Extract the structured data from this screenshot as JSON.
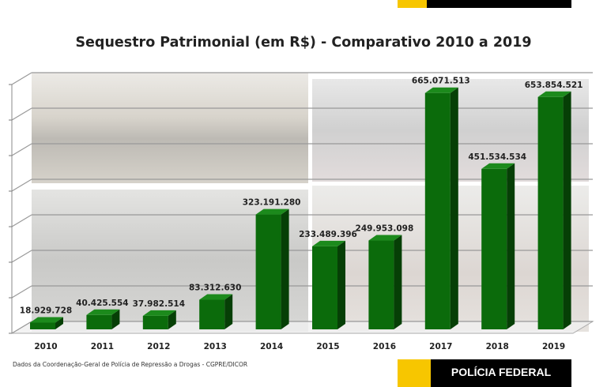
{
  "header": {
    "accent_colors": [
      "#f7c600",
      "#000000"
    ]
  },
  "chart_data": {
    "type": "bar",
    "style": "3d",
    "title": "Sequestro Patrimonial (em R$) - Comparativo 2010 a 2019",
    "xlabel": "",
    "ylabel": "",
    "categories": [
      "2010",
      "2011",
      "2012",
      "2013",
      "2014",
      "2015",
      "2016",
      "2017",
      "2018",
      "2019"
    ],
    "values": [
      18929728,
      40425554,
      37982514,
      83312630,
      323191280,
      233489396,
      249953098,
      665071513,
      451534534,
      653854521
    ],
    "data_labels": [
      "18.929.728",
      "40.425.554",
      "37.982.514",
      "83.312.630",
      "323.191.280",
      "233.489.396",
      "249.953.098",
      "665.071.513",
      "451.534.534",
      "653.854.521"
    ],
    "ylim": [
      0,
      700000000
    ],
    "y_tick_labels_shown": false,
    "grid": true,
    "bar_color": "#0b6b0b",
    "background": "faded photographs of seized vehicles"
  },
  "footer": {
    "source": "Dados da Coordenação-Geral de Polícia de Repressão a Drogas - CGPRE/DICOR",
    "brand": "POLÍCIA FEDERAL"
  }
}
